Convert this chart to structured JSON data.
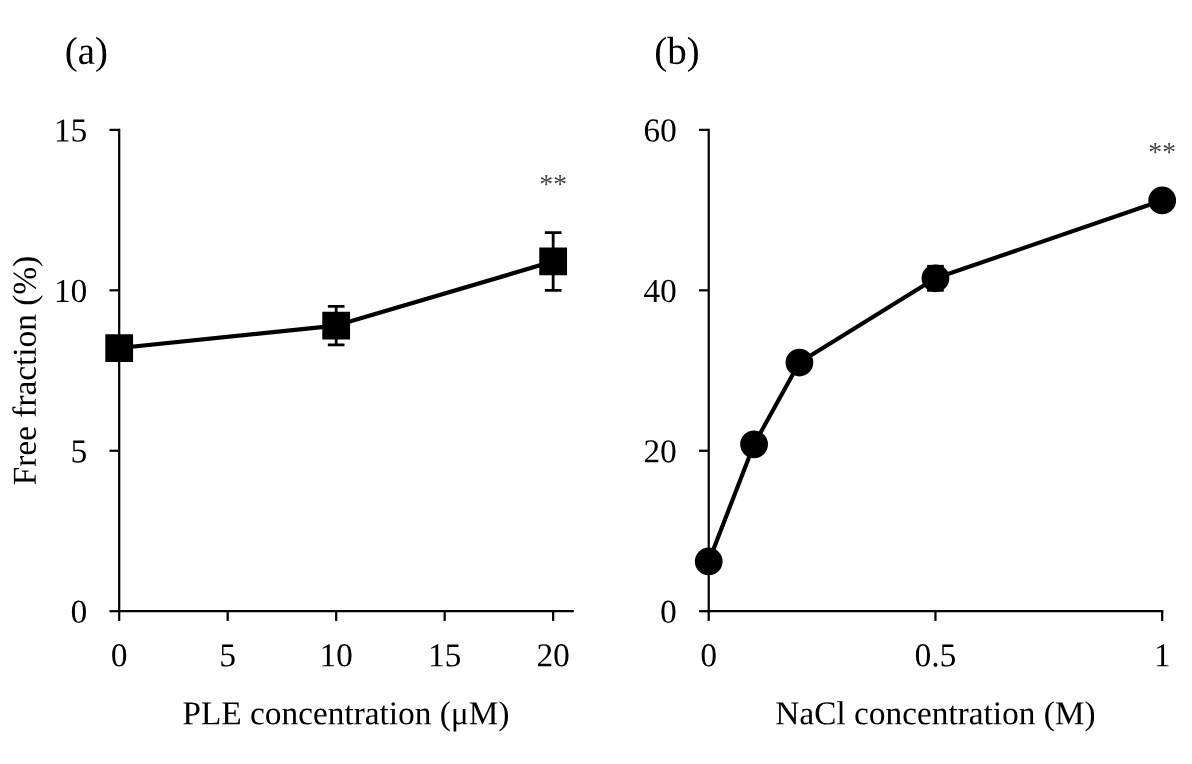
{
  "chart_data": [
    {
      "type": "line",
      "title": "(a)",
      "xlabel": "PLE concentration (μM)",
      "ylabel": "Free fraction (%)",
      "x": [
        0,
        10,
        20
      ],
      "series": [
        {
          "color": "#000000",
          "values": [
            8.2,
            8.9,
            10.9
          ],
          "errors": [
            null,
            0.6,
            0.9
          ]
        }
      ],
      "marker": "square",
      "line_style": "solid",
      "xlim": [
        0,
        20.9
      ],
      "xticks": [
        0,
        5,
        10,
        15,
        20
      ],
      "ylim": [
        0,
        15
      ],
      "yticks": [
        0,
        5,
        10,
        15
      ],
      "grid": false,
      "legend": false,
      "annotations": [
        "**"
      ]
    },
    {
      "type": "line",
      "title": "(b)",
      "xlabel": "NaCl concentration (M)",
      "x": [
        0,
        0.1,
        0.2,
        0.5,
        1
      ],
      "series": [
        {
          "color": "#000000",
          "values": [
            6.2,
            20.8,
            31,
            41.5,
            51.2
          ],
          "errors": [
            null,
            null,
            null,
            1.5,
            null
          ]
        }
      ],
      "marker": "circle",
      "line_style": "solid",
      "xlim": [
        0,
        1
      ],
      "xticks": [
        0,
        0.5,
        1
      ],
      "ylim": [
        0,
        60
      ],
      "yticks": [
        0,
        20,
        40,
        60
      ],
      "grid": false,
      "legend": false,
      "annotations": [
        "**"
      ]
    }
  ]
}
